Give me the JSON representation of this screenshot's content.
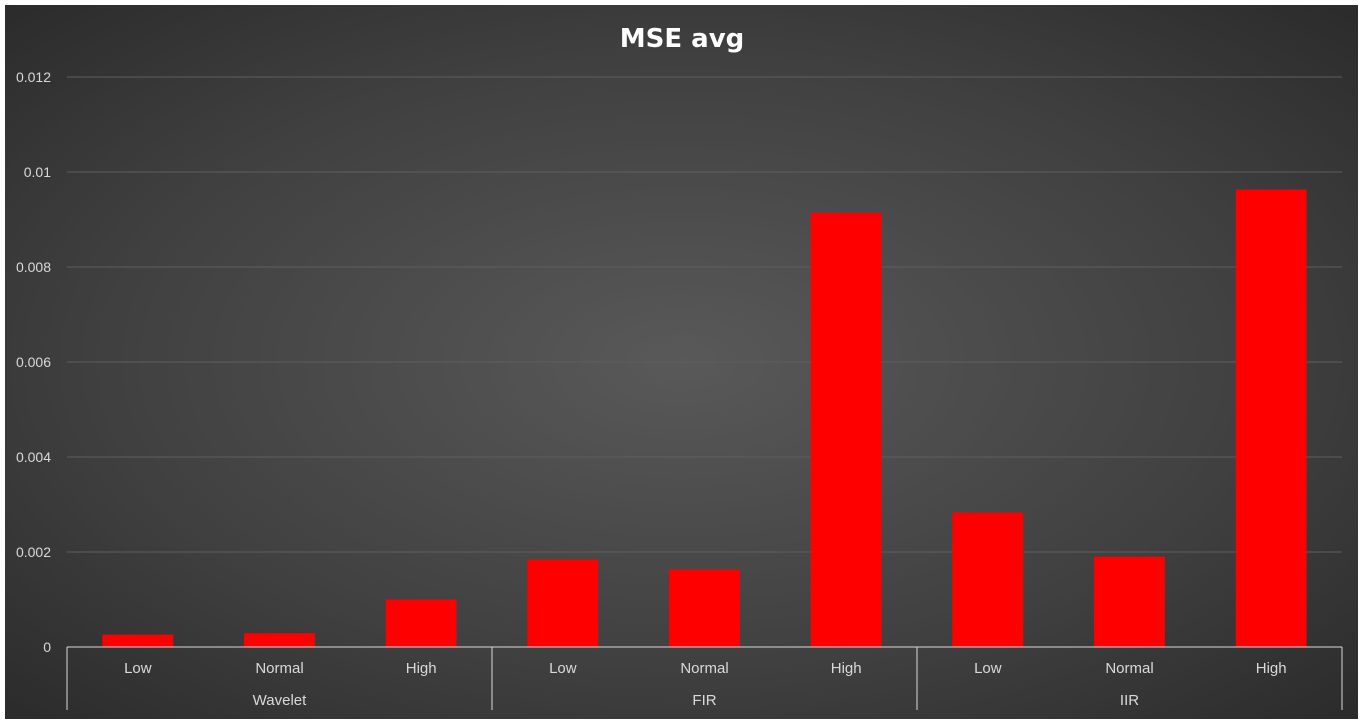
{
  "chart_data": {
    "type": "bar",
    "title": "MSE avg",
    "groups": [
      {
        "name": "Wavelet",
        "categories": [
          "Low",
          "Normal",
          "High"
        ]
      },
      {
        "name": "FIR",
        "categories": [
          "Low",
          "Normal",
          "High"
        ]
      },
      {
        "name": "IIR",
        "categories": [
          "Low",
          "Normal",
          "High"
        ]
      }
    ],
    "categories": [
      "Low",
      "Normal",
      "High",
      "Low",
      "Normal",
      "High",
      "Low",
      "Normal",
      "High"
    ],
    "values": [
      0.00026,
      0.00029,
      0.001,
      0.00184,
      0.00163,
      0.00914,
      0.00283,
      0.0019,
      0.00963
    ],
    "ylim": [
      0,
      0.012
    ],
    "yticks": [
      "0",
      "0.002",
      "0.004",
      "0.006",
      "0.008",
      "0.01",
      "0.012"
    ],
    "ytick_values": [
      0,
      0.002,
      0.004,
      0.006,
      0.008,
      0.01,
      0.012
    ],
    "xlabel": "",
    "ylabel": "",
    "grid": true,
    "legend": "none",
    "colors": {
      "bar": "#ff0000",
      "text": "#ffffff",
      "tick_text": "#d9d9d9",
      "gridline": "#5e5e5e",
      "axis": "#d9d9d9"
    }
  }
}
